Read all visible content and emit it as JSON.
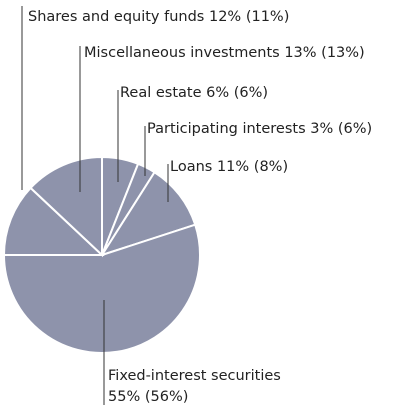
{
  "chart_data": {
    "type": "pie",
    "categories": [
      "Real estate",
      "Participating interests",
      "Loans",
      "Fixed-interest securities",
      "Shares and equity funds",
      "Miscellaneous investments"
    ],
    "values": [
      6,
      3,
      11,
      55,
      12,
      13
    ],
    "value_labels": [
      "6%",
      "3%",
      "11%",
      "55%",
      "12%",
      "13%"
    ],
    "prior_labels": [
      "(6%)",
      "(6%)",
      "(8%)",
      "(56%)",
      "(11%)",
      "(13%)"
    ],
    "color": "#8e93ab"
  }
}
